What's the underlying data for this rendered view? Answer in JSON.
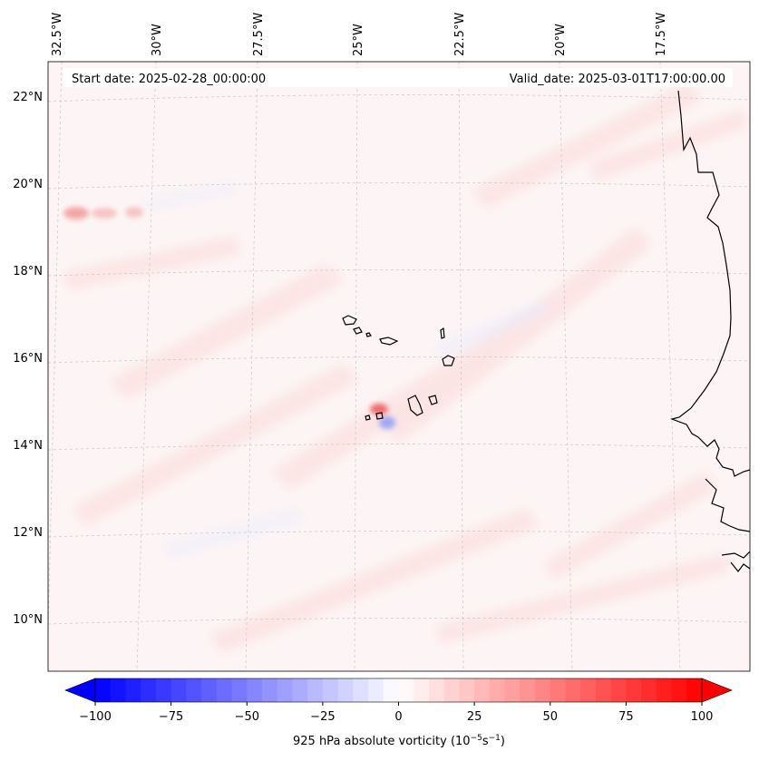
{
  "header": {
    "start_date_text": "Start date: 2025-02-28_00:00:00",
    "valid_date_text": "Valid_date: 2025-03-01T17:00:00.00"
  },
  "map": {
    "lon_labels": [
      "32.5°W",
      "30°W",
      "27.5°W",
      "25°W",
      "22.5°W",
      "20°W",
      "17.5°W"
    ],
    "lat_labels": [
      "22°N",
      "20°N",
      "18°N",
      "16°N",
      "14°N",
      "12°N",
      "10°N"
    ],
    "gridlines": true,
    "features": [
      "Cape Verde islands",
      "West African coastline"
    ]
  },
  "colorbar": {
    "label_main": "925 hPa absolute vorticity (10",
    "label_exp1": "−5",
    "label_mid": "s",
    "label_exp2": "−1",
    "label_end": ")",
    "ticks": [
      "−100",
      "−75",
      "−50",
      "−25",
      "0",
      "25",
      "50",
      "75",
      "100"
    ],
    "vmin": -100,
    "vmax": 100,
    "levels": 41,
    "cmap": "bwr",
    "neg_color": "#0000ff",
    "zero_color": "#ffffff",
    "pos_color": "#ff0000"
  }
}
